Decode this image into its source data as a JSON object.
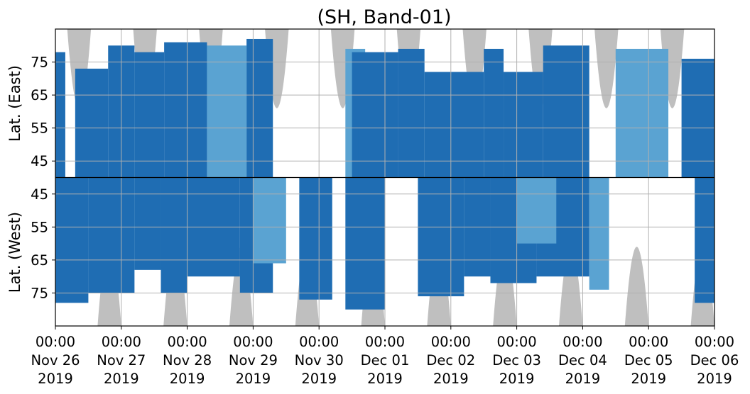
{
  "chart_data": {
    "type": "heatmap",
    "title": "(SH, Band-01)",
    "ylabel_top": "Lat. (East)",
    "ylabel_bottom": "Lat. (West)",
    "x_ticks": [
      {
        "time": "00:00",
        "date": "Nov 26",
        "year": "2019"
      },
      {
        "time": "00:00",
        "date": "Nov 27",
        "year": "2019"
      },
      {
        "time": "00:00",
        "date": "Nov 28",
        "year": "2019"
      },
      {
        "time": "00:00",
        "date": "Nov 29",
        "year": "2019"
      },
      {
        "time": "00:00",
        "date": "Nov 30",
        "year": "2019"
      },
      {
        "time": "00:00",
        "date": "Dec 01",
        "year": "2019"
      },
      {
        "time": "00:00",
        "date": "Dec 02",
        "year": "2019"
      },
      {
        "time": "00:00",
        "date": "Dec 03",
        "year": "2019"
      },
      {
        "time": "00:00",
        "date": "Dec 04",
        "year": "2019"
      },
      {
        "time": "00:00",
        "date": "Dec 05",
        "year": "2019"
      },
      {
        "time": "00:00",
        "date": "Dec 06",
        "year": "2019"
      }
    ],
    "x_range": [
      "2019-11-26 00:00",
      "2019-12-06 00:00"
    ],
    "y_ticks_east": [
      "45",
      "55",
      "65",
      "75"
    ],
    "y_ticks_west": [
      "75",
      "65",
      "55",
      "45"
    ],
    "lat_range": [
      40,
      85
    ],
    "grid": true,
    "colors": {
      "strong": "#1f6db3",
      "weak": "#5aa3d2",
      "no_data": "#bfbfbf",
      "grid": "#b0b0b0",
      "axis": "#000000"
    },
    "no_data_regions": [
      {
        "hemisphere": "east",
        "center_day": 0.36,
        "half_width_days": 0.18,
        "min_lat": 61
      },
      {
        "hemisphere": "east",
        "center_day": 1.36,
        "half_width_days": 0.18,
        "min_lat": 61
      },
      {
        "hemisphere": "east",
        "center_day": 2.36,
        "half_width_days": 0.18,
        "min_lat": 61
      },
      {
        "hemisphere": "east",
        "center_day": 3.36,
        "half_width_days": 0.18,
        "min_lat": 61
      },
      {
        "hemisphere": "east",
        "center_day": 4.36,
        "half_width_days": 0.18,
        "min_lat": 61
      },
      {
        "hemisphere": "east",
        "center_day": 5.36,
        "half_width_days": 0.18,
        "min_lat": 61
      },
      {
        "hemisphere": "east",
        "center_day": 6.36,
        "half_width_days": 0.18,
        "min_lat": 61
      },
      {
        "hemisphere": "east",
        "center_day": 7.36,
        "half_width_days": 0.18,
        "min_lat": 61
      },
      {
        "hemisphere": "east",
        "center_day": 8.36,
        "half_width_days": 0.18,
        "min_lat": 61
      },
      {
        "hemisphere": "east",
        "center_day": 9.36,
        "half_width_days": 0.18,
        "min_lat": 61
      },
      {
        "hemisphere": "west",
        "center_day": 0.82,
        "half_width_days": 0.18,
        "min_lat": 61
      },
      {
        "hemisphere": "west",
        "center_day": 1.82,
        "half_width_days": 0.18,
        "min_lat": 61
      },
      {
        "hemisphere": "west",
        "center_day": 2.82,
        "half_width_days": 0.18,
        "min_lat": 61
      },
      {
        "hemisphere": "west",
        "center_day": 3.82,
        "half_width_days": 0.18,
        "min_lat": 61
      },
      {
        "hemisphere": "west",
        "center_day": 4.82,
        "half_width_days": 0.18,
        "min_lat": 61
      },
      {
        "hemisphere": "west",
        "center_day": 5.82,
        "half_width_days": 0.18,
        "min_lat": 61
      },
      {
        "hemisphere": "west",
        "center_day": 6.82,
        "half_width_days": 0.18,
        "min_lat": 61
      },
      {
        "hemisphere": "west",
        "center_day": 7.82,
        "half_width_days": 0.18,
        "min_lat": 61
      },
      {
        "hemisphere": "west",
        "center_day": 8.82,
        "half_width_days": 0.18,
        "min_lat": 61
      },
      {
        "hemisphere": "west",
        "center_day": 9.82,
        "half_width_days": 0.18,
        "min_lat": 61
      }
    ],
    "echo_regions": [
      {
        "hemisphere": "east",
        "start_day": 0.0,
        "end_day": 0.15,
        "min_lat": 78,
        "level": "strong"
      },
      {
        "hemisphere": "east",
        "start_day": 0.3,
        "end_day": 0.8,
        "min_lat": 73,
        "level": "strong"
      },
      {
        "hemisphere": "east",
        "start_day": 0.8,
        "end_day": 1.2,
        "min_lat": 80,
        "level": "strong"
      },
      {
        "hemisphere": "east",
        "start_day": 1.2,
        "end_day": 1.65,
        "min_lat": 78,
        "level": "strong"
      },
      {
        "hemisphere": "east",
        "start_day": 1.65,
        "end_day": 2.3,
        "min_lat": 81,
        "level": "strong"
      },
      {
        "hemisphere": "east",
        "start_day": 2.3,
        "end_day": 2.9,
        "min_lat": 80,
        "level": "weak"
      },
      {
        "hemisphere": "east",
        "start_day": 2.9,
        "end_day": 3.3,
        "min_lat": 82,
        "level": "strong"
      },
      {
        "hemisphere": "east",
        "start_day": 4.4,
        "end_day": 4.7,
        "min_lat": 79,
        "level": "weak"
      },
      {
        "hemisphere": "east",
        "start_day": 4.5,
        "end_day": 5.2,
        "min_lat": 78,
        "level": "strong"
      },
      {
        "hemisphere": "east",
        "start_day": 4.6,
        "end_day": 5.0,
        "min_lat": 56,
        "level": "strong"
      },
      {
        "hemisphere": "east",
        "start_day": 5.2,
        "end_day": 5.6,
        "min_lat": 79,
        "level": "strong"
      },
      {
        "hemisphere": "east",
        "start_day": 5.6,
        "end_day": 6.5,
        "min_lat": 72,
        "level": "strong"
      },
      {
        "hemisphere": "east",
        "start_day": 6.5,
        "end_day": 6.8,
        "min_lat": 79,
        "level": "strong"
      },
      {
        "hemisphere": "east",
        "start_day": 6.8,
        "end_day": 7.4,
        "min_lat": 72,
        "level": "strong"
      },
      {
        "hemisphere": "east",
        "start_day": 7.4,
        "end_day": 8.1,
        "min_lat": 80,
        "level": "strong"
      },
      {
        "hemisphere": "east",
        "start_day": 8.5,
        "end_day": 9.3,
        "min_lat": 79,
        "level": "weak"
      },
      {
        "hemisphere": "east",
        "start_day": 9.5,
        "end_day": 10.0,
        "min_lat": 76,
        "level": "strong"
      },
      {
        "hemisphere": "west",
        "start_day": 0.0,
        "end_day": 0.5,
        "min_lat": 78,
        "level": "strong"
      },
      {
        "hemisphere": "west",
        "start_day": 0.5,
        "end_day": 1.2,
        "min_lat": 75,
        "level": "strong"
      },
      {
        "hemisphere": "west",
        "start_day": 1.2,
        "end_day": 1.6,
        "min_lat": 68,
        "level": "strong"
      },
      {
        "hemisphere": "west",
        "start_day": 1.6,
        "end_day": 2.0,
        "min_lat": 75,
        "level": "strong"
      },
      {
        "hemisphere": "west",
        "start_day": 2.0,
        "end_day": 2.8,
        "min_lat": 70,
        "level": "strong"
      },
      {
        "hemisphere": "west",
        "start_day": 2.8,
        "end_day": 3.3,
        "min_lat": 75,
        "level": "strong"
      },
      {
        "hemisphere": "west",
        "start_day": 3.0,
        "end_day": 3.5,
        "min_lat": 66,
        "level": "weak"
      },
      {
        "hemisphere": "west",
        "start_day": 3.7,
        "end_day": 4.2,
        "min_lat": 77,
        "level": "strong"
      },
      {
        "hemisphere": "west",
        "start_day": 4.4,
        "end_day": 5.0,
        "min_lat": 80,
        "level": "strong"
      },
      {
        "hemisphere": "west",
        "start_day": 5.5,
        "end_day": 6.2,
        "min_lat": 76,
        "level": "strong"
      },
      {
        "hemisphere": "west",
        "start_day": 6.2,
        "end_day": 6.6,
        "min_lat": 70,
        "level": "strong"
      },
      {
        "hemisphere": "west",
        "start_day": 6.6,
        "end_day": 7.3,
        "min_lat": 72,
        "level": "strong"
      },
      {
        "hemisphere": "west",
        "start_day": 7.3,
        "end_day": 8.1,
        "min_lat": 70,
        "level": "strong"
      },
      {
        "hemisphere": "west",
        "start_day": 8.1,
        "end_day": 8.4,
        "min_lat": 74,
        "level": "weak"
      },
      {
        "hemisphere": "west",
        "start_day": 7.0,
        "end_day": 7.6,
        "min_lat": 60,
        "level": "weak"
      },
      {
        "hemisphere": "west",
        "start_day": 9.7,
        "end_day": 10.0,
        "min_lat": 78,
        "level": "strong"
      }
    ]
  }
}
